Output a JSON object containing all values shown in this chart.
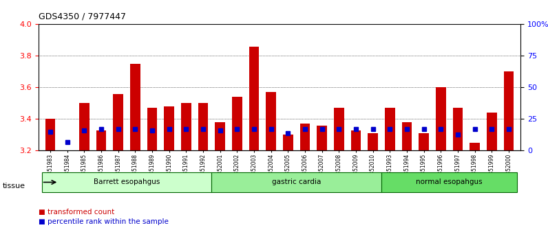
{
  "title": "GDS4350 / 7977447",
  "samples": [
    "GSM851983",
    "GSM851984",
    "GSM851985",
    "GSM851986",
    "GSM851987",
    "GSM851988",
    "GSM851989",
    "GSM851990",
    "GSM851991",
    "GSM851992",
    "GSM852001",
    "GSM852002",
    "GSM852003",
    "GSM852004",
    "GSM852005",
    "GSM852006",
    "GSM852007",
    "GSM852008",
    "GSM852009",
    "GSM852010",
    "GSM851993",
    "GSM851994",
    "GSM851995",
    "GSM851996",
    "GSM851997",
    "GSM851998",
    "GSM851999",
    "GSM852000"
  ],
  "red_values": [
    3.4,
    3.2,
    3.5,
    3.33,
    3.56,
    3.75,
    3.47,
    3.48,
    3.5,
    3.5,
    3.38,
    3.54,
    3.86,
    3.57,
    3.3,
    3.37,
    3.36,
    3.47,
    3.33,
    3.31,
    3.47,
    3.38,
    3.31,
    3.6,
    3.47,
    3.25,
    3.44,
    3.7
  ],
  "blue_values": [
    3.31,
    3.27,
    3.31,
    3.31,
    3.31,
    3.31,
    3.3,
    3.31,
    3.31,
    3.31,
    3.3,
    3.31,
    3.31,
    3.31,
    3.3,
    3.31,
    3.31,
    3.31,
    3.31,
    3.31,
    3.31,
    3.31,
    3.31,
    3.31,
    3.3,
    3.31,
    3.31,
    3.31
  ],
  "blue_percentile": [
    15,
    7,
    16,
    17,
    17,
    17,
    16,
    17,
    17,
    17,
    16,
    17,
    17,
    17,
    14,
    17,
    17,
    17,
    17,
    17,
    17,
    17,
    17,
    17,
    13,
    17,
    17,
    17
  ],
  "ylim_left": [
    3.2,
    4.0
  ],
  "ylim_right": [
    0,
    100
  ],
  "yticks_left": [
    3.2,
    3.4,
    3.6,
    3.8,
    4.0
  ],
  "yticks_right": [
    0,
    25,
    50,
    75,
    100
  ],
  "ytick_right_labels": [
    "0",
    "25",
    "50",
    "75",
    "100%"
  ],
  "grid_lines": [
    3.4,
    3.6,
    3.8
  ],
  "bar_color": "#cc0000",
  "blue_color": "#0000cc",
  "baseline": 3.2,
  "groups": [
    {
      "label": "Barrett esopahgus",
      "start": 0,
      "end": 9,
      "color": "#ccffcc"
    },
    {
      "label": "gastric cardia",
      "start": 10,
      "end": 19,
      "color": "#99ee99"
    },
    {
      "label": "normal esopahgus",
      "start": 20,
      "end": 27,
      "color": "#66dd66"
    }
  ],
  "legend_items": [
    {
      "label": "transformed count",
      "color": "#cc0000"
    },
    {
      "label": "percentile rank within the sample",
      "color": "#0000cc"
    }
  ],
  "tissue_label": "tissue",
  "bar_width": 0.6
}
